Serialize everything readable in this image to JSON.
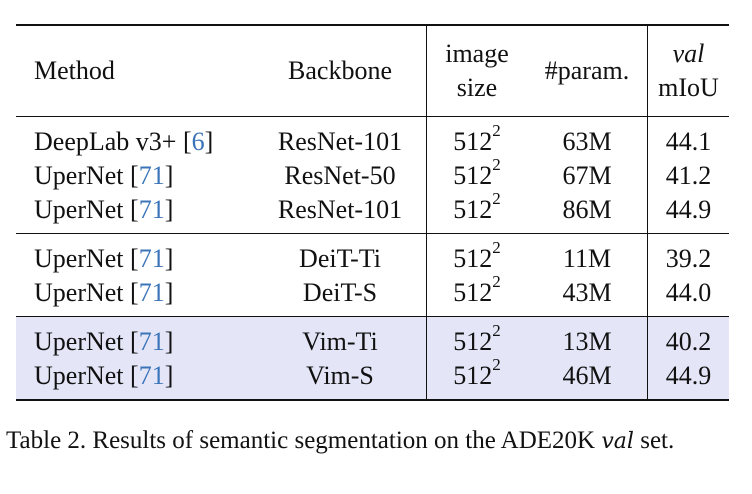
{
  "table": {
    "headers": {
      "method": "Method",
      "backbone": "Backbone",
      "image_size_line1": "image",
      "image_size_line2": "size",
      "params": "#param.",
      "miou_line1": "val",
      "miou_line2": "mIoU"
    },
    "rows": [
      {
        "method": "DeepLab v3+",
        "cite": "6",
        "backbone": "ResNet-101",
        "size_base": "512",
        "size_exp": "2",
        "params": "63M",
        "miou": "44.1"
      },
      {
        "method": "UperNet",
        "cite": "71",
        "backbone": "ResNet-50",
        "size_base": "512",
        "size_exp": "2",
        "params": "67M",
        "miou": "41.2"
      },
      {
        "method": "UperNet",
        "cite": "71",
        "backbone": "ResNet-101",
        "size_base": "512",
        "size_exp": "2",
        "params": "86M",
        "miou": "44.9"
      },
      {
        "method": "UperNet",
        "cite": "71",
        "backbone": "DeiT-Ti",
        "size_base": "512",
        "size_exp": "2",
        "params": "11M",
        "miou": "39.2"
      },
      {
        "method": "UperNet",
        "cite": "71",
        "backbone": "DeiT-S",
        "size_base": "512",
        "size_exp": "2",
        "params": "43M",
        "miou": "44.0"
      },
      {
        "method": "UperNet",
        "cite": "71",
        "backbone": "Vim-Ti",
        "size_base": "512",
        "size_exp": "2",
        "params": "13M",
        "miou": "40.2"
      },
      {
        "method": "UperNet",
        "cite": "71",
        "backbone": "Vim-S",
        "size_base": "512",
        "size_exp": "2",
        "params": "46M",
        "miou": "44.9"
      }
    ],
    "highlight_color": "#e4e6f8",
    "citation_color": "#3b74b8"
  },
  "caption": {
    "prefix": "Table 2.  Results of semantic segmentation on the ADE20K ",
    "val": "val",
    "suffix": " set."
  }
}
